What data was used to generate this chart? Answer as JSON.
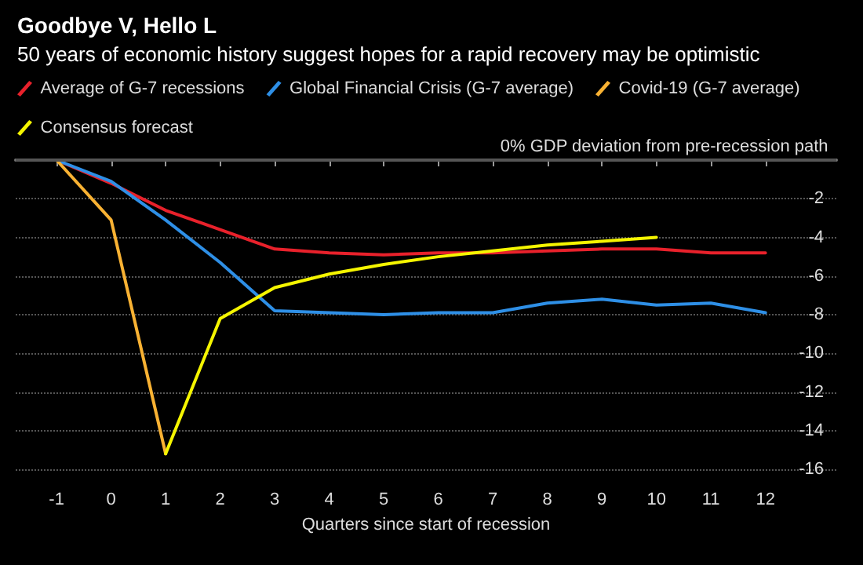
{
  "chart_data": {
    "type": "line",
    "title": "Goodbye V, Hello L",
    "subtitle": "50 years of economic history suggest hopes for a rapid recovery may be optimistic",
    "xlabel": "Quarters since start of recession",
    "ylabel": "0% GDP deviation from pre-recession path",
    "x": [
      -1,
      0,
      1,
      2,
      3,
      4,
      5,
      6,
      7,
      8,
      9,
      10,
      11,
      12
    ],
    "series": [
      {
        "name": "Average of G-7 recessions",
        "color": "#e8212b",
        "values": [
          0,
          -1.2,
          -2.6,
          -3.6,
          -4.6,
          -4.8,
          -4.9,
          -4.8,
          -4.8,
          -4.7,
          -4.6,
          -4.6,
          -4.8,
          -4.8
        ]
      },
      {
        "name": "Global Financial Crisis (G-7 average)",
        "color": "#2e8fe6",
        "values": [
          0,
          -1.1,
          -3.1,
          -5.3,
          -7.8,
          -7.9,
          -8.0,
          -7.9,
          -7.9,
          -7.4,
          -7.2,
          -7.5,
          -7.4,
          -7.9
        ]
      },
      {
        "name": "Covid-19 (G-7 average)",
        "color": "#f9b233",
        "x": [
          -1,
          0,
          1
        ],
        "values": [
          0,
          -3.1,
          -15.2
        ]
      },
      {
        "name": "Consensus forecast",
        "color": "#f5f500",
        "x": [
          1,
          2,
          3,
          4,
          5,
          6,
          7,
          8,
          9,
          10
        ],
        "values": [
          -15.2,
          -8.2,
          -6.6,
          -5.9,
          -5.4,
          -5.0,
          -4.7,
          -4.4,
          -4.2,
          -4.0
        ]
      }
    ],
    "xlim": [
      -1.75,
      13.3
    ],
    "xticks": [
      -1,
      0,
      1,
      2,
      3,
      4,
      5,
      6,
      7,
      8,
      9,
      10,
      11,
      12
    ],
    "ylim": [
      -16,
      0
    ],
    "yticks": [
      -16,
      -14,
      -12,
      -10,
      -8,
      -6,
      -4,
      -2
    ],
    "ref_lines": [
      {
        "axis": "y",
        "value": 0,
        "color": "#555555",
        "line_style": "solid"
      }
    ],
    "grid": "y",
    "legend": "top left",
    "marker": "none",
    "line_style": "solid"
  }
}
